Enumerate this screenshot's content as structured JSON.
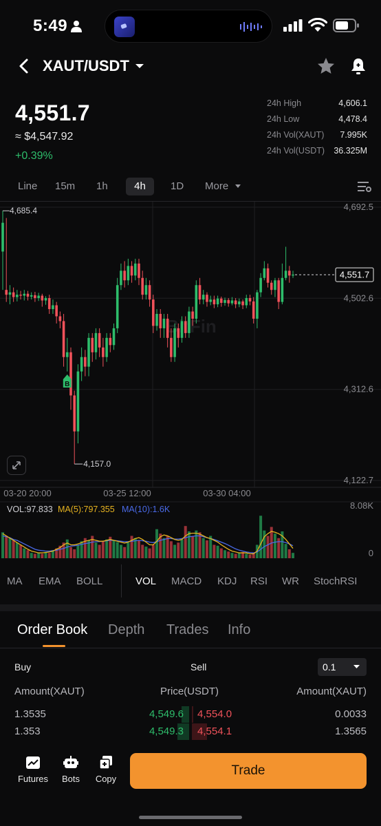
{
  "status_bar": {
    "time": "5:49"
  },
  "header": {
    "pair": "XAUT/USDT"
  },
  "ticker": {
    "last": "4,551.7",
    "fiat": "≈ $4,547.92",
    "change": "+0.39%",
    "stats": [
      {
        "label": "24h High",
        "value": "4,606.1"
      },
      {
        "label": "24h Low",
        "value": "4,478.4"
      },
      {
        "label": "24h Vol(XAUT)",
        "value": "7.995K"
      },
      {
        "label": "24h Vol(USDT)",
        "value": "36.325M"
      }
    ]
  },
  "intervals": [
    "Line",
    "15m",
    "1h",
    "4h",
    "1D",
    "More"
  ],
  "active_interval": "4h",
  "chart_data": {
    "type": "candlestick",
    "y_ticks": [
      "4,692.5",
      "4,502.6",
      "4,312.6",
      "4,122.7"
    ],
    "ylim": [
      4122.7,
      4692.5
    ],
    "x_ticks": [
      "03-20 20:00",
      "03-25 12:00",
      "03-30 04:00"
    ],
    "high_label": "4,685.4",
    "low_label": "4,157.0",
    "last_price_label": "4,551.7",
    "buy_marker": "B",
    "watermark": "BitFin",
    "candles": [
      [
        4600,
        4660,
        4520,
        4685
      ],
      [
        4520,
        4510,
        4495,
        4670
      ],
      [
        4510,
        4515,
        4490,
        4530
      ],
      [
        4515,
        4505,
        4495,
        4525
      ],
      [
        4505,
        4510,
        4496,
        4520
      ],
      [
        4510,
        4508,
        4500,
        4518
      ],
      [
        4508,
        4512,
        4498,
        4520
      ],
      [
        4512,
        4506,
        4498,
        4518
      ],
      [
        4506,
        4509,
        4500,
        4515
      ],
      [
        4509,
        4503,
        4495,
        4516
      ],
      [
        4503,
        4508,
        4497,
        4514
      ],
      [
        4508,
        4498,
        4485,
        4512
      ],
      [
        4498,
        4503,
        4489,
        4507
      ],
      [
        4503,
        4480,
        4470,
        4510
      ],
      [
        4480,
        4488,
        4470,
        4500
      ],
      [
        4488,
        4465,
        4450,
        4495
      ],
      [
        4465,
        4455,
        4440,
        4475
      ],
      [
        4455,
        4380,
        4360,
        4470
      ],
      [
        4380,
        4390,
        4350,
        4420
      ],
      [
        4390,
        4300,
        4270,
        4400
      ],
      [
        4300,
        4225,
        4157,
        4310
      ],
      [
        4225,
        4350,
        4200,
        4365
      ],
      [
        4350,
        4380,
        4330,
        4400
      ],
      [
        4380,
        4360,
        4340,
        4395
      ],
      [
        4360,
        4420,
        4340,
        4430
      ],
      [
        4420,
        4390,
        4370,
        4430
      ],
      [
        4390,
        4430,
        4375,
        4440
      ],
      [
        4430,
        4400,
        4380,
        4440
      ],
      [
        4400,
        4380,
        4360,
        4420
      ],
      [
        4380,
        4420,
        4370,
        4430
      ],
      [
        4420,
        4405,
        4390,
        4430
      ],
      [
        4405,
        4440,
        4395,
        4450
      ],
      [
        4440,
        4530,
        4430,
        4545
      ],
      [
        4530,
        4560,
        4520,
        4575
      ],
      [
        4560,
        4540,
        4525,
        4580
      ],
      [
        4540,
        4570,
        4530,
        4585
      ],
      [
        4570,
        4550,
        4535,
        4580
      ],
      [
        4550,
        4575,
        4540,
        4585
      ],
      [
        4575,
        4545,
        4530,
        4585
      ],
      [
        4545,
        4510,
        4500,
        4560
      ],
      [
        4510,
        4530,
        4500,
        4545
      ],
      [
        4530,
        4500,
        4485,
        4540
      ],
      [
        4500,
        4445,
        4430,
        4510
      ],
      [
        4445,
        4470,
        4435,
        4480
      ],
      [
        4470,
        4440,
        4420,
        4480
      ],
      [
        4440,
        4460,
        4420,
        4470
      ],
      [
        4460,
        4420,
        4400,
        4470
      ],
      [
        4420,
        4380,
        4370,
        4440
      ],
      [
        4380,
        4440,
        4370,
        4450
      ],
      [
        4440,
        4420,
        4400,
        4450
      ],
      [
        4420,
        4455,
        4410,
        4465
      ],
      [
        4455,
        4430,
        4420,
        4465
      ],
      [
        4430,
        4475,
        4420,
        4485
      ],
      [
        4475,
        4460,
        4445,
        4485
      ],
      [
        4460,
        4530,
        4450,
        4540
      ],
      [
        4530,
        4500,
        4490,
        4545
      ],
      [
        4500,
        4510,
        4490,
        4520
      ],
      [
        4510,
        4495,
        4485,
        4515
      ],
      [
        4495,
        4500,
        4488,
        4508
      ],
      [
        4500,
        4490,
        4482,
        4508
      ],
      [
        4490,
        4502,
        4484,
        4508
      ],
      [
        4502,
        4493,
        4485,
        4506
      ],
      [
        4493,
        4499,
        4487,
        4504
      ],
      [
        4499,
        4492,
        4485,
        4503
      ],
      [
        4492,
        4498,
        4488,
        4505
      ],
      [
        4498,
        4490,
        4482,
        4503
      ],
      [
        4490,
        4496,
        4484,
        4502
      ],
      [
        4496,
        4488,
        4480,
        4500
      ],
      [
        4488,
        4503,
        4482,
        4510
      ],
      [
        4503,
        4496,
        4488,
        4510
      ],
      [
        4496,
        4460,
        4450,
        4505
      ],
      [
        4460,
        4515,
        4440,
        4520
      ],
      [
        4515,
        4545,
        4505,
        4555
      ],
      [
        4545,
        4565,
        4540,
        4580
      ],
      [
        4565,
        4535,
        4525,
        4575
      ],
      [
        4535,
        4520,
        4510,
        4540
      ],
      [
        4520,
        4540,
        4505,
        4545
      ],
      [
        4540,
        4495,
        4480,
        4545
      ],
      [
        4495,
        4545,
        4490,
        4575
      ],
      [
        4545,
        4560,
        4540,
        4610
      ],
      [
        4560,
        4550,
        4535,
        4570
      ],
      [
        4550,
        4552,
        4545,
        4560
      ]
    ]
  },
  "volume": {
    "vol_label": "VOL:97.833",
    "ma5_label": "MA(5):797.355",
    "ma10_label": "MA(10):1.6K",
    "max_label": "8.08K",
    "zero_label": "0",
    "bars": [
      0.58,
      0.5,
      0.45,
      0.4,
      0.35,
      0.3,
      0.22,
      0.18,
      0.12,
      0.1,
      0.12,
      0.1,
      0.14,
      0.12,
      0.18,
      0.22,
      0.28,
      0.35,
      0.42,
      0.25,
      0.2,
      0.3,
      0.38,
      0.45,
      0.4,
      0.5,
      0.35,
      0.3,
      0.38,
      0.42,
      0.48,
      0.4,
      0.36,
      0.3,
      0.25,
      0.35,
      0.5,
      0.45,
      0.4,
      0.3,
      0.26,
      0.22,
      0.3,
      0.65,
      0.55,
      0.45,
      0.5,
      0.38,
      0.3,
      0.35,
      0.42,
      0.72,
      0.6,
      0.5,
      0.62,
      0.58,
      0.45,
      0.4,
      0.5,
      0.3,
      0.28,
      0.22,
      0.18,
      0.15,
      0.12,
      0.1,
      0.12,
      0.14,
      0.1,
      0.08,
      0.12,
      0.3,
      0.95,
      0.62,
      0.5,
      0.7,
      0.55,
      0.45,
      0.6,
      0.32,
      0.2,
      0.12
    ],
    "ma5": [
      0.55,
      0.5,
      0.45,
      0.4,
      0.35,
      0.3,
      0.25,
      0.2,
      0.16,
      0.14,
      0.12,
      0.12,
      0.13,
      0.14,
      0.16,
      0.2,
      0.24,
      0.3,
      0.34,
      0.3,
      0.3,
      0.32,
      0.35,
      0.38,
      0.4,
      0.42,
      0.4,
      0.38,
      0.38,
      0.4,
      0.42,
      0.4,
      0.38,
      0.36,
      0.34,
      0.36,
      0.4,
      0.44,
      0.46,
      0.42,
      0.36,
      0.3,
      0.3,
      0.38,
      0.48,
      0.52,
      0.5,
      0.46,
      0.42,
      0.4,
      0.42,
      0.5,
      0.55,
      0.56,
      0.56,
      0.54,
      0.5,
      0.46,
      0.44,
      0.4,
      0.36,
      0.3,
      0.25,
      0.2,
      0.16,
      0.14,
      0.12,
      0.12,
      0.12,
      0.1,
      0.1,
      0.16,
      0.32,
      0.48,
      0.55,
      0.6,
      0.58,
      0.55,
      0.5,
      0.42,
      0.32,
      0.22
    ],
    "ma10": [
      0.5,
      0.48,
      0.46,
      0.42,
      0.4,
      0.36,
      0.32,
      0.28,
      0.24,
      0.2,
      0.18,
      0.17,
      0.16,
      0.16,
      0.17,
      0.18,
      0.2,
      0.22,
      0.25,
      0.27,
      0.28,
      0.29,
      0.31,
      0.33,
      0.34,
      0.36,
      0.37,
      0.37,
      0.38,
      0.39,
      0.4,
      0.4,
      0.39,
      0.38,
      0.37,
      0.37,
      0.38,
      0.39,
      0.4,
      0.39,
      0.38,
      0.36,
      0.35,
      0.37,
      0.4,
      0.42,
      0.44,
      0.44,
      0.43,
      0.43,
      0.44,
      0.46,
      0.48,
      0.49,
      0.5,
      0.5,
      0.48,
      0.46,
      0.44,
      0.42,
      0.39,
      0.36,
      0.33,
      0.29,
      0.25,
      0.21,
      0.18,
      0.16,
      0.14,
      0.13,
      0.12,
      0.14,
      0.2,
      0.26,
      0.3,
      0.34,
      0.36,
      0.37,
      0.37,
      0.35,
      0.32,
      0.28
    ]
  },
  "indicators": [
    "MA",
    "EMA",
    "BOLL",
    "VOL",
    "MACD",
    "KDJ",
    "RSI",
    "WR",
    "StochRSI"
  ],
  "active_indicator": "VOL",
  "book_tabs": [
    "Order Book",
    "Depth",
    "Trades",
    "Info"
  ],
  "order_book": {
    "buy_label": "Buy",
    "sell_label": "Sell",
    "precision": "0.1",
    "col_amount_left": "Amount(XAUT)",
    "col_price": "Price(USDT)",
    "col_amount_right": "Amount(XAUT)",
    "rows": [
      {
        "buy_amount": "1.3535",
        "buy_price": "4,549.6",
        "sell_price": "4,554.0",
        "sell_amount": "0.0033",
        "buy_depth": 0.02,
        "sell_depth": 0.0
      },
      {
        "buy_amount": "1.353",
        "buy_price": "4,549.3",
        "sell_price": "4,554.1",
        "sell_amount": "1.3565",
        "buy_depth": 0.03,
        "sell_depth": 0.04
      }
    ]
  },
  "bottom_nav": {
    "futures": "Futures",
    "bots": "Bots",
    "copy": "Copy",
    "trade": "Trade"
  },
  "colors": {
    "up": "#2ebd6b",
    "down": "#f0525a",
    "accent": "#f3932e",
    "ma5": "#e6b320",
    "ma10": "#4a6ae8"
  }
}
